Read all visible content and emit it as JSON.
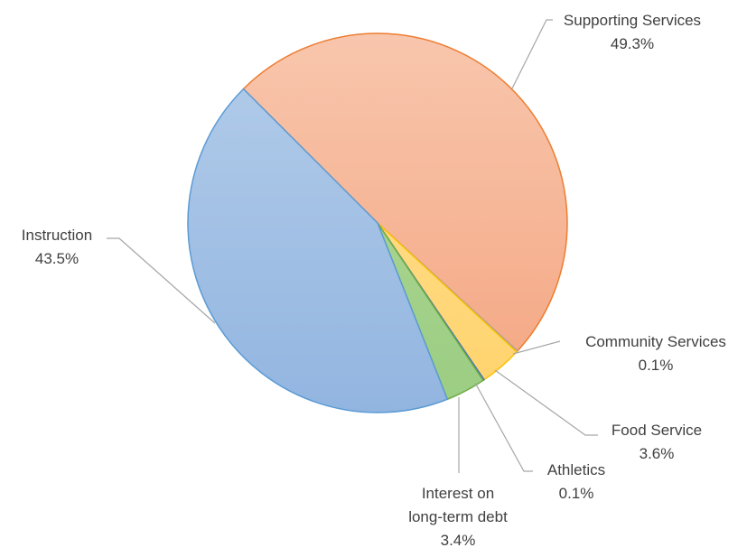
{
  "chart_data": {
    "type": "pie",
    "title": "",
    "start_angle_deg": 315,
    "direction": "clockwise",
    "legend": "none",
    "slices": [
      {
        "name": "Supporting Services",
        "label_lines": [
          "Supporting Services"
        ],
        "value_label": "49.3%",
        "value": 49.3,
        "fill_top": "#f8c6ad",
        "fill_bottom": "#f4a580",
        "stroke": "#ed7d31"
      },
      {
        "name": "Community Services",
        "label_lines": [
          "Community Services"
        ],
        "value_label": "0.1%",
        "value": 0.1,
        "fill_top": "#e0e0e0",
        "fill_bottom": "#c9c9c9",
        "stroke": "#a5a5a5"
      },
      {
        "name": "Food Service",
        "label_lines": [
          "Food Service"
        ],
        "value_label": "3.6%",
        "value": 3.6,
        "fill_top": "#ffe19a",
        "fill_bottom": "#ffd36b",
        "stroke": "#ffc000"
      },
      {
        "name": "Athletics",
        "label_lines": [
          "Athletics"
        ],
        "value_label": "0.1%",
        "value": 0.1,
        "fill_top": "#a9c6e8",
        "fill_bottom": "#8fb4e0",
        "stroke": "#4472c4"
      },
      {
        "name": "Interest on long-term debt",
        "label_lines": [
          "Interest on",
          "long-term debt"
        ],
        "value_label": "3.4%",
        "value": 3.4,
        "fill_top": "#b3d99a",
        "fill_bottom": "#9bcd82",
        "stroke": "#70ad47"
      },
      {
        "name": "Instruction",
        "label_lines": [
          "Instruction"
        ],
        "value_label": "43.5%",
        "value": 43.5,
        "fill_top": "#b4cdea",
        "fill_bottom": "#92b5e0",
        "stroke": "#5b9bd5"
      }
    ]
  }
}
